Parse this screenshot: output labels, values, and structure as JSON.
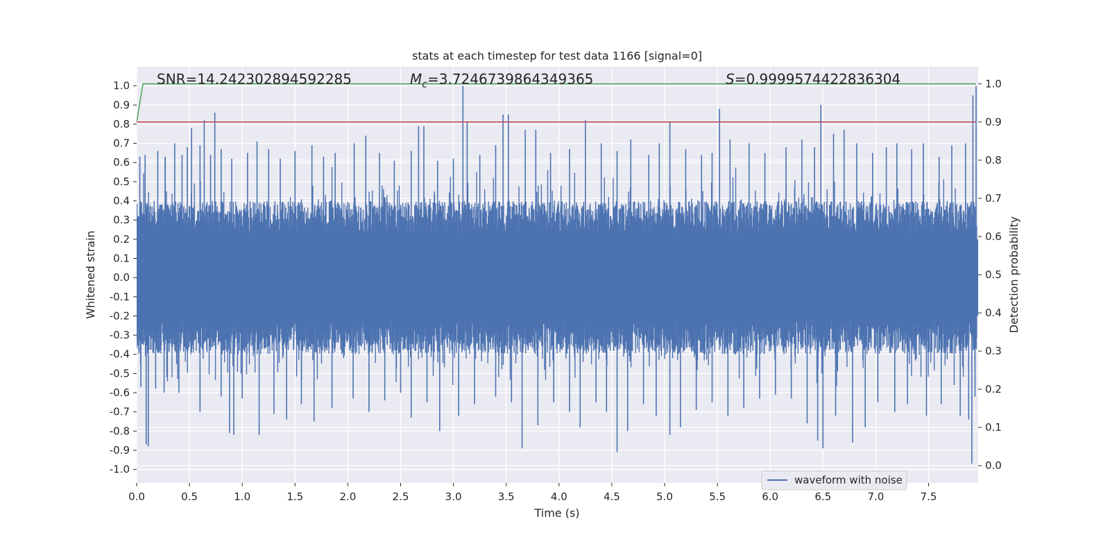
{
  "chart_data": {
    "type": "line",
    "title": "stats at each timestep for test data 1166 [signal=0]",
    "xlabel": "Time (s)",
    "ylabel": "Whitened strain",
    "y2label": "Detection probability",
    "xlim": [
      0.0,
      7.97
    ],
    "ylim": [
      -1.07,
      1.1
    ],
    "y2lim": [
      -0.045,
      1.045
    ],
    "xticks": [
      0.0,
      0.5,
      1.0,
      1.5,
      2.0,
      2.5,
      3.0,
      3.5,
      4.0,
      4.5,
      5.0,
      5.5,
      6.0,
      6.5,
      7.0,
      7.5
    ],
    "xtick_labels": [
      "0.0",
      "0.5",
      "1.0",
      "1.5",
      "2.0",
      "2.5",
      "3.0",
      "3.5",
      "4.0",
      "4.5",
      "5.0",
      "5.5",
      "6.0",
      "6.5",
      "7.0",
      "7.5"
    ],
    "yticks": [
      1.0,
      0.9,
      0.8,
      0.7,
      0.6,
      0.5,
      0.4,
      0.3,
      0.2,
      0.1,
      0.0,
      -0.1,
      -0.2,
      -0.3,
      -0.4,
      -0.5,
      -0.6,
      -0.7,
      -0.8,
      -0.9,
      -1.0
    ],
    "ytick_labels": [
      "1.0",
      "0.9",
      "0.8",
      "0.7",
      "0.6",
      "0.5",
      "0.4",
      "0.3",
      "0.2",
      "0.1",
      "0.0",
      "-0.1",
      "-0.2",
      "-0.3",
      "-0.4",
      "-0.5",
      "-0.6",
      "-0.7",
      "-0.8",
      "-0.9",
      "-1.0"
    ],
    "y2ticks": [
      1.0,
      0.9,
      0.8,
      0.7,
      0.6,
      0.5,
      0.4,
      0.3,
      0.2,
      0.1,
      0.0
    ],
    "y2tick_labels": [
      "1.0",
      "0.9",
      "0.8",
      "0.7",
      "0.6",
      "0.5",
      "0.4",
      "0.3",
      "0.2",
      "0.1",
      "0.0"
    ],
    "grid": true,
    "legend": {
      "placement": "lower-right",
      "entries": [
        "waveform with noise"
      ]
    },
    "annotations": {
      "snr": "SNR=14.242302894592285",
      "mc_symbol": "M",
      "mc_sub": "c",
      "mc_value": "=3.7246739864349365",
      "s_symbol": "S",
      "s_value": "=0.9999574422836304"
    },
    "series": [
      {
        "name": "waveform with noise",
        "axis": "left",
        "color": "#4c72b0",
        "kind": "noise",
        "typical_upper": 0.4,
        "typical_lower": -0.4,
        "dense_band": [
          -0.2,
          0.2
        ],
        "upper_peaks": [
          {
            "x": 0.03,
            "y": 0.63
          },
          {
            "x": 0.08,
            "y": 0.64
          },
          {
            "x": 0.2,
            "y": 0.66
          },
          {
            "x": 0.27,
            "y": 0.63
          },
          {
            "x": 0.27,
            "y": 0.63
          },
          {
            "x": 0.36,
            "y": 0.7
          },
          {
            "x": 0.43,
            "y": 0.64
          },
          {
            "x": 0.48,
            "y": 0.68
          },
          {
            "x": 0.52,
            "y": 0.78
          },
          {
            "x": 0.6,
            "y": 0.69
          },
          {
            "x": 0.64,
            "y": 0.82
          },
          {
            "x": 0.7,
            "y": 0.64
          },
          {
            "x": 0.74,
            "y": 0.86
          },
          {
            "x": 0.8,
            "y": 0.67
          },
          {
            "x": 0.9,
            "y": 0.62
          },
          {
            "x": 1.05,
            "y": 0.65
          },
          {
            "x": 1.14,
            "y": 0.71
          },
          {
            "x": 1.25,
            "y": 0.67
          },
          {
            "x": 1.36,
            "y": 0.62
          },
          {
            "x": 1.5,
            "y": 0.66
          },
          {
            "x": 1.66,
            "y": 0.69
          },
          {
            "x": 1.77,
            "y": 0.63
          },
          {
            "x": 1.88,
            "y": 0.65
          },
          {
            "x": 2.06,
            "y": 0.7
          },
          {
            "x": 2.17,
            "y": 0.74
          },
          {
            "x": 2.3,
            "y": 0.65
          },
          {
            "x": 2.44,
            "y": 0.61
          },
          {
            "x": 2.6,
            "y": 0.66
          },
          {
            "x": 2.67,
            "y": 0.79
          },
          {
            "x": 2.72,
            "y": 0.79
          },
          {
            "x": 2.85,
            "y": 0.61
          },
          {
            "x": 3.0,
            "y": 0.62
          },
          {
            "x": 3.09,
            "y": 1.0
          },
          {
            "x": 3.13,
            "y": 0.81
          },
          {
            "x": 3.25,
            "y": 0.64
          },
          {
            "x": 3.4,
            "y": 0.69
          },
          {
            "x": 3.47,
            "y": 0.85
          },
          {
            "x": 3.52,
            "y": 0.85
          },
          {
            "x": 3.68,
            "y": 0.77
          },
          {
            "x": 3.78,
            "y": 0.77
          },
          {
            "x": 3.92,
            "y": 0.65
          },
          {
            "x": 4.1,
            "y": 0.67
          },
          {
            "x": 4.25,
            "y": 0.82
          },
          {
            "x": 4.4,
            "y": 0.7
          },
          {
            "x": 4.55,
            "y": 0.66
          },
          {
            "x": 4.68,
            "y": 0.72
          },
          {
            "x": 4.85,
            "y": 0.64
          },
          {
            "x": 4.95,
            "y": 0.7
          },
          {
            "x": 5.05,
            "y": 0.81
          },
          {
            "x": 5.2,
            "y": 0.67
          },
          {
            "x": 5.35,
            "y": 0.64
          },
          {
            "x": 5.45,
            "y": 0.65
          },
          {
            "x": 5.52,
            "y": 0.88
          },
          {
            "x": 5.62,
            "y": 0.72
          },
          {
            "x": 5.8,
            "y": 0.7
          },
          {
            "x": 5.95,
            "y": 0.65
          },
          {
            "x": 6.15,
            "y": 0.68
          },
          {
            "x": 6.3,
            "y": 0.72
          },
          {
            "x": 6.42,
            "y": 0.68
          },
          {
            "x": 6.48,
            "y": 0.9
          },
          {
            "x": 6.6,
            "y": 0.75
          },
          {
            "x": 6.7,
            "y": 0.77
          },
          {
            "x": 6.82,
            "y": 0.7
          },
          {
            "x": 6.97,
            "y": 0.65
          },
          {
            "x": 7.1,
            "y": 0.68
          },
          {
            "x": 7.2,
            "y": 0.7
          },
          {
            "x": 7.34,
            "y": 0.67
          },
          {
            "x": 7.45,
            "y": 0.7
          },
          {
            "x": 7.6,
            "y": 0.63
          },
          {
            "x": 7.72,
            "y": 0.69
          },
          {
            "x": 7.85,
            "y": 0.7
          },
          {
            "x": 7.92,
            "y": 0.95
          },
          {
            "x": 7.95,
            "y": 1.0
          }
        ],
        "lower_peaks": [
          {
            "x": 0.04,
            "y": -0.57
          },
          {
            "x": 0.09,
            "y": -0.87
          },
          {
            "x": 0.11,
            "y": -0.88
          },
          {
            "x": 0.18,
            "y": -0.58
          },
          {
            "x": 0.26,
            "y": -0.6
          },
          {
            "x": 0.4,
            "y": -0.6
          },
          {
            "x": 0.6,
            "y": -0.7
          },
          {
            "x": 0.8,
            "y": -0.62
          },
          {
            "x": 0.88,
            "y": -0.81
          },
          {
            "x": 0.92,
            "y": -0.82
          },
          {
            "x": 1.0,
            "y": -0.63
          },
          {
            "x": 1.16,
            "y": -0.82
          },
          {
            "x": 1.3,
            "y": -0.71
          },
          {
            "x": 1.42,
            "y": -0.74
          },
          {
            "x": 1.56,
            "y": -0.66
          },
          {
            "x": 1.68,
            "y": -0.75
          },
          {
            "x": 1.85,
            "y": -0.68
          },
          {
            "x": 2.05,
            "y": -0.63
          },
          {
            "x": 2.2,
            "y": -0.7
          },
          {
            "x": 2.35,
            "y": -0.64
          },
          {
            "x": 2.5,
            "y": -0.6
          },
          {
            "x": 2.6,
            "y": -0.73
          },
          {
            "x": 2.75,
            "y": -0.65
          },
          {
            "x": 2.87,
            "y": -0.8
          },
          {
            "x": 3.05,
            "y": -0.72
          },
          {
            "x": 3.2,
            "y": -0.66
          },
          {
            "x": 3.4,
            "y": -0.62
          },
          {
            "x": 3.55,
            "y": -0.65
          },
          {
            "x": 3.65,
            "y": -0.89
          },
          {
            "x": 3.8,
            "y": -0.77
          },
          {
            "x": 3.95,
            "y": -0.65
          },
          {
            "x": 4.1,
            "y": -0.7
          },
          {
            "x": 4.2,
            "y": -0.78
          },
          {
            "x": 4.35,
            "y": -0.65
          },
          {
            "x": 4.45,
            "y": -0.7
          },
          {
            "x": 4.55,
            "y": -0.91
          },
          {
            "x": 4.65,
            "y": -0.8
          },
          {
            "x": 4.8,
            "y": -0.66
          },
          {
            "x": 4.92,
            "y": -0.72
          },
          {
            "x": 5.05,
            "y": -0.82
          },
          {
            "x": 5.15,
            "y": -0.78
          },
          {
            "x": 5.3,
            "y": -0.69
          },
          {
            "x": 5.45,
            "y": -0.65
          },
          {
            "x": 5.6,
            "y": -0.72
          },
          {
            "x": 5.75,
            "y": -0.68
          },
          {
            "x": 5.9,
            "y": -0.63
          },
          {
            "x": 6.05,
            "y": -0.61
          },
          {
            "x": 6.2,
            "y": -0.63
          },
          {
            "x": 6.35,
            "y": -0.76
          },
          {
            "x": 6.45,
            "y": -0.85
          },
          {
            "x": 6.5,
            "y": -0.89
          },
          {
            "x": 6.62,
            "y": -0.72
          },
          {
            "x": 6.78,
            "y": -0.86
          },
          {
            "x": 6.9,
            "y": -0.78
          },
          {
            "x": 7.02,
            "y": -0.65
          },
          {
            "x": 7.18,
            "y": -0.7
          },
          {
            "x": 7.3,
            "y": -0.66
          },
          {
            "x": 7.48,
            "y": -0.72
          },
          {
            "x": 7.62,
            "y": -0.66
          },
          {
            "x": 7.8,
            "y": -0.72
          },
          {
            "x": 7.88,
            "y": -0.74
          },
          {
            "x": 7.91,
            "y": -0.97
          },
          {
            "x": 7.94,
            "y": -0.62
          }
        ]
      },
      {
        "axis": "right",
        "color": "#55a868",
        "x": [
          0.0,
          0.06,
          7.95
        ],
        "y": [
          0.9,
          1.0,
          1.0
        ]
      },
      {
        "axis": "right",
        "color": "#c44e52",
        "x": [
          0.0,
          7.95
        ],
        "y": [
          0.9,
          0.9
        ]
      }
    ]
  }
}
